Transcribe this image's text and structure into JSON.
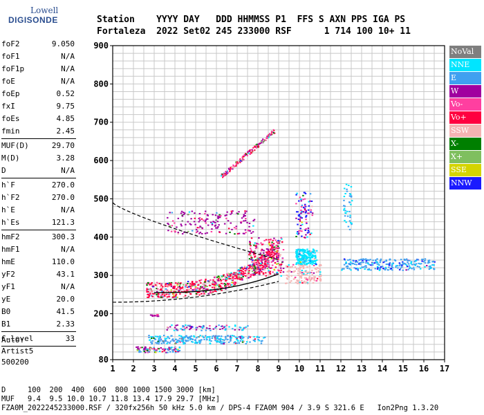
{
  "logo": {
    "line1": "Lowell",
    "line2": "DIGISONDE"
  },
  "header": {
    "line1": "Station    YYYY DAY   DDD HHMMSS P1  FFS S AXN PPS IGA PS",
    "line2": "Fortaleza  2022 Set02 245 233000 RSF      1 714 100 10+ 11"
  },
  "params": [
    {
      "name": "foF2",
      "value": "9.050"
    },
    {
      "name": "foF1",
      "value": "N/A"
    },
    {
      "name": "foF1p",
      "value": "N/A"
    },
    {
      "name": "foE",
      "value": "N/A"
    },
    {
      "name": "foEp",
      "value": "0.52"
    },
    {
      "name": "fxI",
      "value": "9.75"
    },
    {
      "name": "foEs",
      "value": "4.85"
    },
    {
      "name": "fmin",
      "value": "2.45"
    },
    {
      "sep": true
    },
    {
      "name": "MUF(D)",
      "value": "29.70"
    },
    {
      "name": "M(D)",
      "value": "3.28"
    },
    {
      "name": "D",
      "value": "N/A"
    },
    {
      "sep": true
    },
    {
      "name": "h`F",
      "value": "270.0"
    },
    {
      "name": "h`F2",
      "value": "270.0"
    },
    {
      "name": "h`E",
      "value": "N/A"
    },
    {
      "name": "h`Es",
      "value": "121.3"
    },
    {
      "sep": true
    },
    {
      "name": "hmF2",
      "value": "300.3"
    },
    {
      "name": "hmF1",
      "value": "N/A"
    },
    {
      "name": "hmE",
      "value": "110.0"
    },
    {
      "name": "yF2",
      "value": "43.1"
    },
    {
      "name": "yF1",
      "value": "N/A"
    },
    {
      "name": "yE",
      "value": "20.0"
    },
    {
      "name": "B0",
      "value": "41.5"
    },
    {
      "name": "B1",
      "value": "2.33"
    },
    {
      "sep": true
    },
    {
      "name": "C-level",
      "value": "33"
    },
    {
      "sep": true
    }
  ],
  "auto": {
    "line1": "Auto:",
    "line2": "Artist5",
    "line3": "500200"
  },
  "legend": [
    {
      "label": "NoVal",
      "color": "#7f7f7f"
    },
    {
      "label": "NNE",
      "color": "#00e5ff"
    },
    {
      "label": "E",
      "color": "#3fa0f0"
    },
    {
      "label": "W",
      "color": "#a0009f"
    },
    {
      "label": "Vo-",
      "color": "#ff3fa0"
    },
    {
      "label": "Vo+",
      "color": "#ff0040"
    },
    {
      "label": "SSW",
      "color": "#f4b3b3"
    },
    {
      "label": "X-",
      "color": "#007f00"
    },
    {
      "label": "X+",
      "color": "#7fbf5f"
    },
    {
      "label": "SSE",
      "color": "#d4d400"
    },
    {
      "label": "NNW",
      "color": "#1a1aff"
    }
  ],
  "axes": {
    "x_ticks": [
      "1",
      "2",
      "3",
      "4",
      "5",
      "6",
      "7",
      "8",
      "9",
      "10",
      "11",
      "12",
      "13",
      "14",
      "15",
      "16",
      "17"
    ],
    "y_ticks": [
      "80",
      "200",
      "300",
      "400",
      "500",
      "600",
      "700",
      "800",
      "900"
    ],
    "x_range": [
      1,
      17
    ],
    "y_range": [
      80,
      900
    ]
  },
  "footer": {
    "line1": "D     100  200  400  600  800 1000 1500 3000 [km]",
    "line2": "MUF   9.4  9.5 10.0 10.7 11.8 13.4 17.9 29.7 [MHz]",
    "line3": "FZA0M_2022245233000.RSF / 320fx256h 50 kHz 5.0 km / DPS-4 FZA0M 904 / 3.9 S 321.6 E   Ion2Png 1.3.20"
  }
}
